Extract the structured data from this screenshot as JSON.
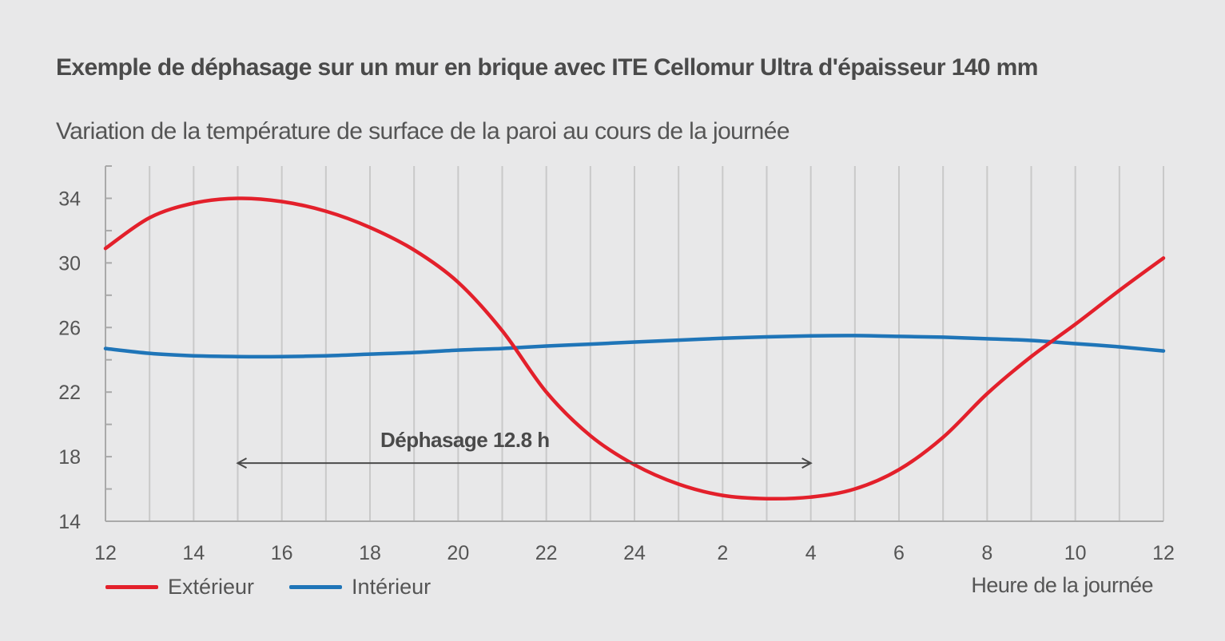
{
  "title": "Exemple de déphasage sur un mur en brique avec ITE Cellomur Ultra d'épaisseur 140 mm",
  "subtitle": "Variation de la température de surface de la paroi au cours de la journée",
  "colors": {
    "exterieur": "#e3202b",
    "interieur": "#1f75b8",
    "grid": "#c9c9c9",
    "axis": "#a9a9a9",
    "annotation": "#4a4a4a",
    "text": "#555555"
  },
  "chart_data": {
    "type": "line",
    "xlabel": "Heure de la journée",
    "x_tick_labels": [
      "12",
      "14",
      "16",
      "18",
      "20",
      "22",
      "24",
      "2",
      "4",
      "6",
      "8",
      "10",
      "12"
    ],
    "x_hours_elapsed_range": [
      0,
      24
    ],
    "y_ticks": [
      14,
      18,
      22,
      26,
      30,
      34
    ],
    "ylim": [
      14,
      36
    ],
    "grid": "vertical every hour",
    "legend_position": "bottom-left",
    "series": [
      {
        "name": "Extérieur",
        "color": "#e3202b",
        "points": [
          [
            0,
            30.9
          ],
          [
            1,
            32.8
          ],
          [
            2,
            33.7
          ],
          [
            3,
            34.0
          ],
          [
            4,
            33.8
          ],
          [
            5,
            33.2
          ],
          [
            6,
            32.2
          ],
          [
            7,
            30.8
          ],
          [
            8,
            28.8
          ],
          [
            9,
            25.8
          ],
          [
            10,
            22.0
          ],
          [
            11,
            19.3
          ],
          [
            12,
            17.5
          ],
          [
            13,
            16.3
          ],
          [
            14,
            15.6
          ],
          [
            15,
            15.4
          ],
          [
            16,
            15.5
          ],
          [
            17,
            16.0
          ],
          [
            18,
            17.2
          ],
          [
            19,
            19.2
          ],
          [
            20,
            21.9
          ],
          [
            21,
            24.2
          ],
          [
            22,
            26.2
          ],
          [
            23,
            28.3
          ],
          [
            24,
            30.3
          ]
        ]
      },
      {
        "name": "Intérieur",
        "color": "#1f75b8",
        "points": [
          [
            0,
            24.7
          ],
          [
            1,
            24.4
          ],
          [
            2,
            24.25
          ],
          [
            3,
            24.2
          ],
          [
            4,
            24.2
          ],
          [
            5,
            24.25
          ],
          [
            6,
            24.35
          ],
          [
            7,
            24.45
          ],
          [
            8,
            24.6
          ],
          [
            9,
            24.7
          ],
          [
            10,
            24.85
          ],
          [
            11,
            24.97
          ],
          [
            12,
            25.1
          ],
          [
            13,
            25.22
          ],
          [
            14,
            25.33
          ],
          [
            15,
            25.42
          ],
          [
            16,
            25.48
          ],
          [
            17,
            25.5
          ],
          [
            18,
            25.45
          ],
          [
            19,
            25.4
          ],
          [
            20,
            25.3
          ],
          [
            21,
            25.2
          ],
          [
            22,
            25.0
          ],
          [
            23,
            24.8
          ],
          [
            24,
            24.55
          ]
        ]
      }
    ],
    "annotation": {
      "text": "Déphasage 12.8 h",
      "from_hours_elapsed": 3,
      "to_hours_elapsed": 16,
      "y": 17.6
    }
  }
}
